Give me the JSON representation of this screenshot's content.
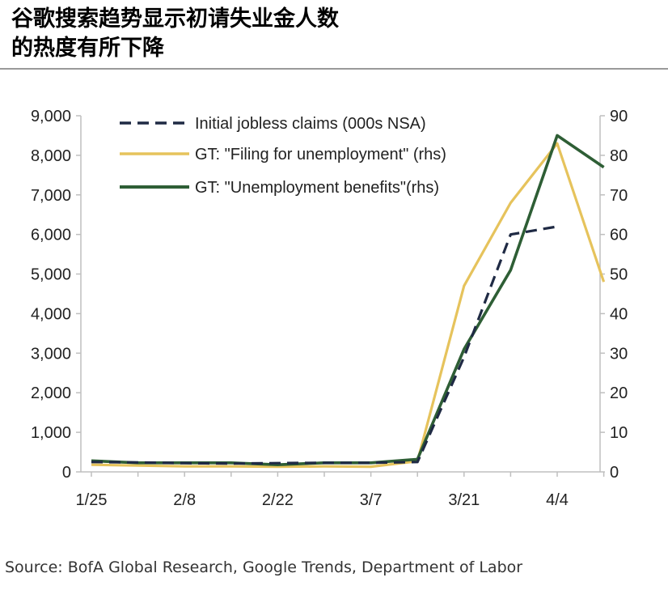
{
  "title": {
    "line1": "谷歌搜索趋势显示初请失业金人数",
    "line2": "的热度有所下降"
  },
  "source": "Source: BofA Global Research, Google Trends, Department of Labor",
  "colors": {
    "claims": "#1f2a44",
    "filing": "#e6c35c",
    "benefits": "#2e5e35",
    "axis": "#bfbfbf"
  },
  "chart_data": {
    "type": "line",
    "x": [
      "1/25",
      "2/1",
      "2/8",
      "2/15",
      "2/22",
      "2/29",
      "3/7",
      "3/14",
      "3/21",
      "3/28",
      "4/4",
      "4/11"
    ],
    "xticks": [
      "1/25",
      "2/8",
      "2/22",
      "3/7",
      "3/21",
      "4/4"
    ],
    "ylim_left": [
      0,
      9000
    ],
    "yticks_left": [
      "0",
      "1,000",
      "2,000",
      "3,000",
      "4,000",
      "5,000",
      "6,000",
      "7,000",
      "8,000",
      "9,000"
    ],
    "ylim_right": [
      0,
      90
    ],
    "yticks_right": [
      "0",
      "10",
      "20",
      "30",
      "40",
      "50",
      "60",
      "70",
      "80",
      "90"
    ],
    "series": [
      {
        "name": "Initial jobless claims (000s NSA)",
        "axis": "left",
        "style": "dashed",
        "values": [
          250,
          240,
          220,
          210,
          220,
          230,
          230,
          250,
          2900,
          6000,
          6200,
          null
        ]
      },
      {
        "name": "GT: \"Filing for unemployment\" (rhs)",
        "axis": "right",
        "style": "solid",
        "values": [
          1.8,
          1.6,
          1.4,
          1.4,
          1.3,
          1.4,
          1.3,
          2.7,
          47,
          68,
          83,
          48
        ]
      },
      {
        "name": "GT: \"Unemployment benefits\"(rhs)",
        "axis": "right",
        "style": "solid",
        "values": [
          2.8,
          2.3,
          2.3,
          2.3,
          1.8,
          2.3,
          2.3,
          3.2,
          31,
          51,
          85,
          77
        ]
      }
    ],
    "legend_position": "top-left",
    "grid": false
  }
}
